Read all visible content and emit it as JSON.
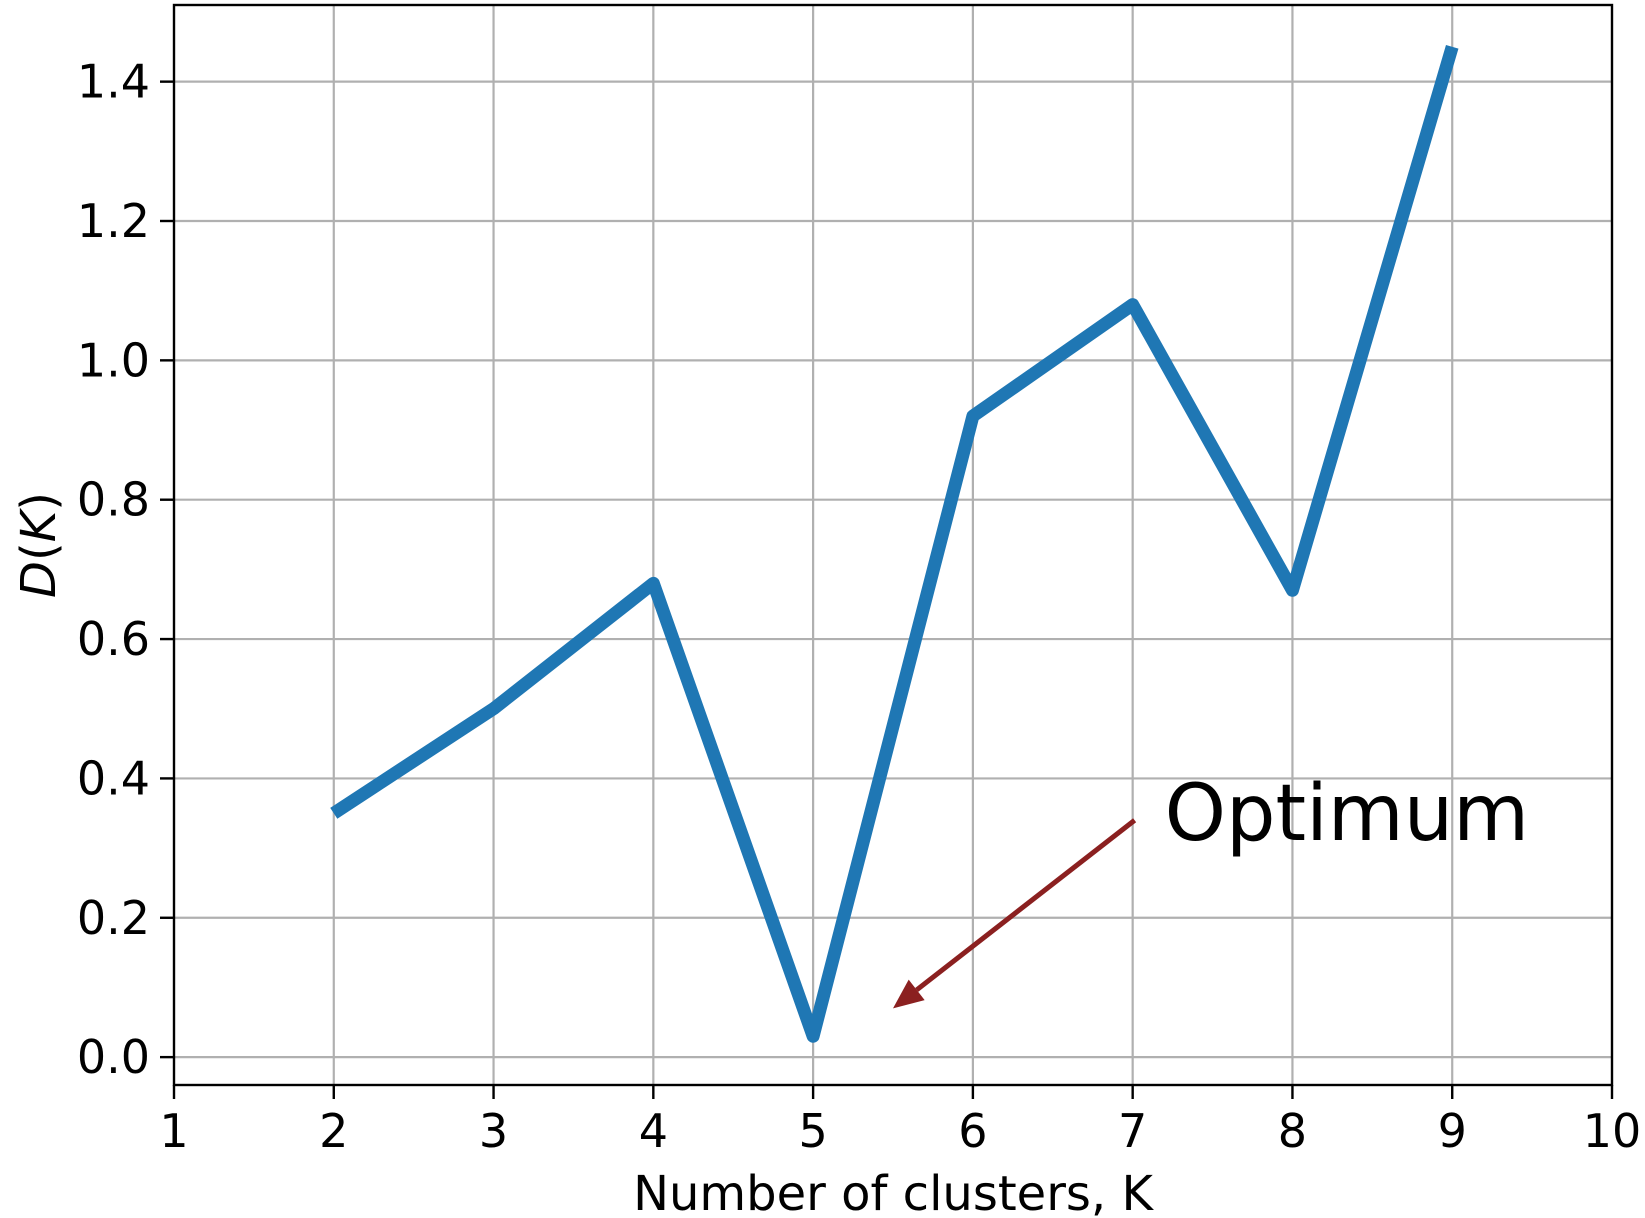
{
  "chart_data": {
    "type": "line",
    "x": [
      2,
      3,
      4,
      5,
      6,
      7,
      8,
      9
    ],
    "series": [
      {
        "values": [
          0.35,
          0.5,
          0.68,
          0.03,
          0.92,
          1.08,
          0.67,
          1.45
        ],
        "color": "#1f77b4"
      }
    ],
    "xlabel": "Number of clusters, K",
    "ylabel": "D(K)",
    "xlim": [
      1,
      10
    ],
    "ylim": [
      -0.04,
      1.51
    ],
    "xticks": [
      1,
      2,
      3,
      4,
      5,
      6,
      7,
      8,
      9,
      10
    ],
    "yticks": [
      0.0,
      0.2,
      0.4,
      0.6,
      0.8,
      1.0,
      1.2,
      1.4
    ],
    "ytick_labels": [
      "0.0",
      "0.2",
      "0.4",
      "0.6",
      "0.8",
      "1.0",
      "1.2",
      "1.4"
    ],
    "grid": true,
    "annotation": {
      "text": "Optimum",
      "arrow_color": "#8b2020",
      "text_x": 7.2,
      "text_y": 0.34,
      "arrow_tip_x": 5.5,
      "arrow_tip_y": 0.07
    }
  }
}
